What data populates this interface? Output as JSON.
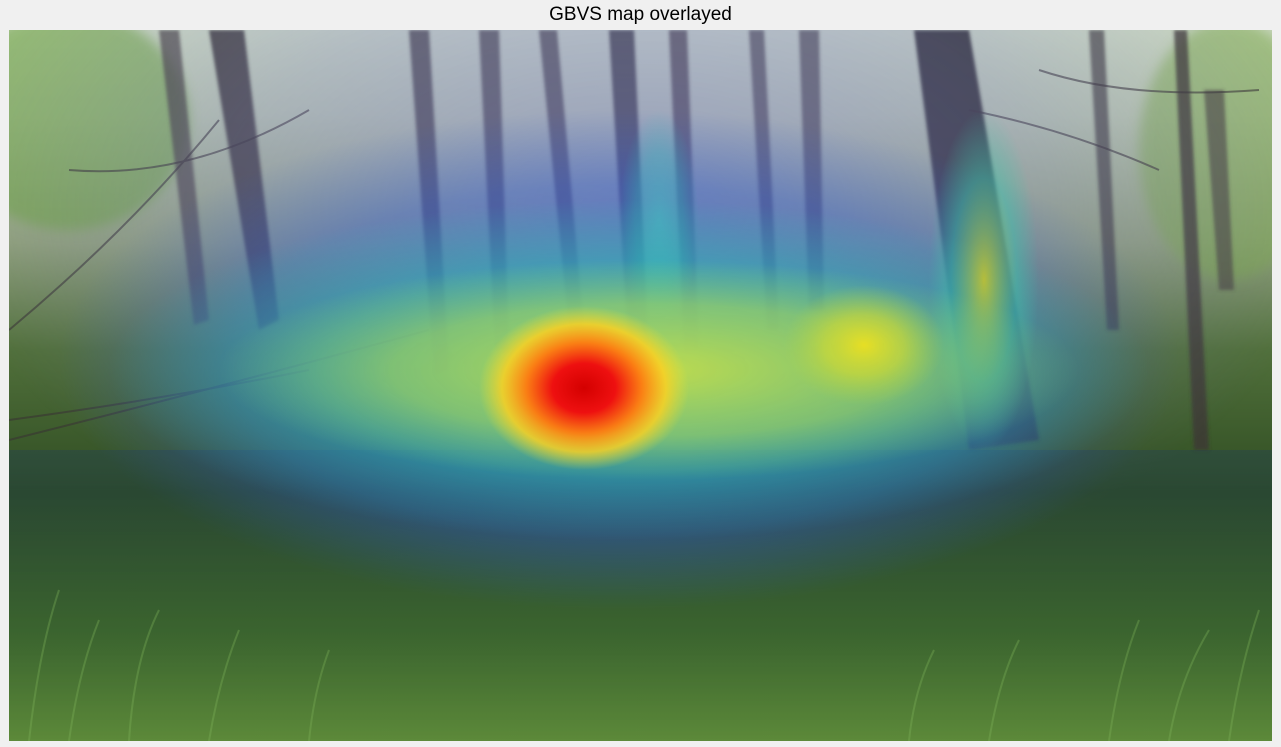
{
  "figure": {
    "title": "GBVS map overlayed",
    "background_color": "#f0f0f0"
  },
  "image": {
    "description_type": "forest photo with saliency heatmap overlay",
    "colormap": "jet"
  }
}
